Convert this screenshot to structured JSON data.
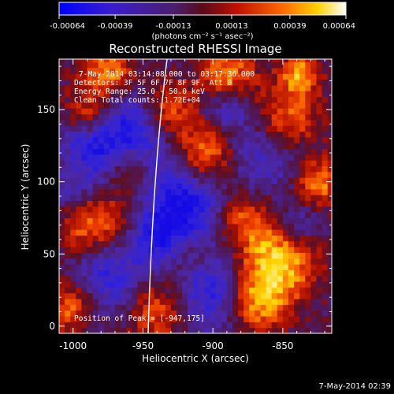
{
  "chart_data": {
    "type": "heatmap",
    "title": "Reconstructed RHESSI Image",
    "xlabel": "Heliocentric X (arcsec)",
    "ylabel": "Heliocentric Y (arcsec)",
    "xlim": [
      -1010,
      -815
    ],
    "ylim": [
      -5,
      185
    ],
    "x_ticks": [
      -1000,
      -950,
      -900,
      -850
    ],
    "x_tick_labels": [
      "-1000",
      "-950",
      "-900",
      "-850"
    ],
    "y_ticks": [
      0,
      50,
      100,
      150
    ],
    "y_tick_labels": [
      "0",
      "50",
      "100",
      "150"
    ],
    "colorbar": {
      "range": [
        -0.00064,
        0.00064
      ],
      "ticks": [
        -0.00064,
        -0.00039,
        -0.00013,
        0.00013,
        0.00039,
        0.00064
      ],
      "tick_labels": [
        "-0.00064",
        "-0.00039",
        "-0.00013",
        "0.00013",
        "0.00039",
        "0.00064"
      ],
      "units_label": "(photons cm⁻² s⁻¹ asec⁻²)"
    },
    "annotations": {
      "time_range": "7-May-2014 03:14:08.000 to 03:17:36.000",
      "detectors": "Detectors: 3F 5F 6F 7F 8F 9F, Att 0",
      "energy_range": "Energy Range: 25.0 - 50.0 keV",
      "method": "Clean     Total counts: 1.72E+04",
      "peak_position": "Position of Peak = [-947,175]"
    },
    "limb_visible": true,
    "peak": [
      -947,
      175
    ]
  },
  "footer": {
    "timestamp": "7-May-2014 02:39"
  },
  "colors": {
    "background": "#000000",
    "foreground": "#ffffff"
  }
}
